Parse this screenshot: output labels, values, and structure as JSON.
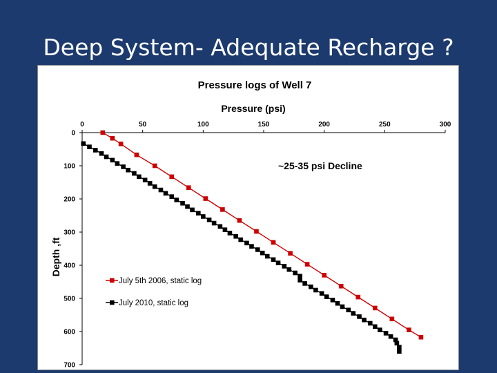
{
  "slide": {
    "title": "Deep System- Adequate Recharge ?"
  },
  "colors": {
    "background": "#1c3a6e",
    "series_2006": "#cc0000",
    "series_2010": "#000000"
  },
  "chart_data": {
    "type": "line",
    "title": "Pressure logs of Well 7",
    "xlabel": "Pressure (psi)",
    "ylabel": "Depth ,ft",
    "x_axis_position": "top",
    "y_inverted": true,
    "xlim": [
      0,
      300
    ],
    "ylim": [
      0,
      700
    ],
    "xticks": [
      "0",
      "50",
      "100",
      "150",
      "200",
      "250",
      "300"
    ],
    "yticks": [
      "0",
      "100",
      "200",
      "300",
      "400",
      "500",
      "600",
      "700"
    ],
    "annotation": "~25-35 psi Decline",
    "legend_position": "bottom-left",
    "grid": false,
    "series": [
      {
        "name": "July 5th 2006, static log",
        "color": "#cc0000",
        "marker": "square",
        "x": [
          17,
          25,
          32,
          45,
          60,
          74,
          88,
          102,
          116,
          130,
          144,
          158,
          172,
          186,
          200,
          214,
          228,
          242,
          256,
          270,
          280
        ],
        "y": [
          0,
          17,
          34,
          67,
          100,
          133,
          166,
          199,
          232,
          265,
          298,
          331,
          364,
          397,
          430,
          463,
          496,
          529,
          562,
          595,
          617
        ]
      },
      {
        "name": "July 2010, static log",
        "color": "#000000",
        "marker": "square",
        "x": [
          1,
          6,
          11,
          16,
          20,
          25,
          29,
          34,
          38,
          43,
          47,
          52,
          56,
          60,
          65,
          69,
          74,
          78,
          83,
          87,
          91,
          96,
          100,
          105,
          109,
          114,
          118,
          122,
          127,
          131,
          136,
          140,
          145,
          149,
          153,
          158,
          162,
          167,
          171,
          176,
          180,
          180,
          184,
          189,
          193,
          198,
          202,
          207,
          211,
          215,
          220,
          224,
          229,
          233,
          238,
          242,
          246,
          251,
          255,
          259,
          260,
          262,
          262
        ],
        "y": [
          33,
          43,
          53,
          63,
          73,
          83,
          93,
          103,
          113,
          123,
          133,
          143,
          153,
          163,
          173,
          183,
          193,
          203,
          213,
          223,
          233,
          243,
          253,
          263,
          273,
          283,
          293,
          303,
          313,
          323,
          333,
          343,
          353,
          363,
          373,
          383,
          393,
          403,
          413,
          423,
          433,
          445,
          455,
          465,
          475,
          485,
          495,
          505,
          515,
          525,
          535,
          545,
          555,
          565,
          575,
          585,
          595,
          605,
          615,
          625,
          635,
          647,
          660
        ]
      }
    ]
  }
}
